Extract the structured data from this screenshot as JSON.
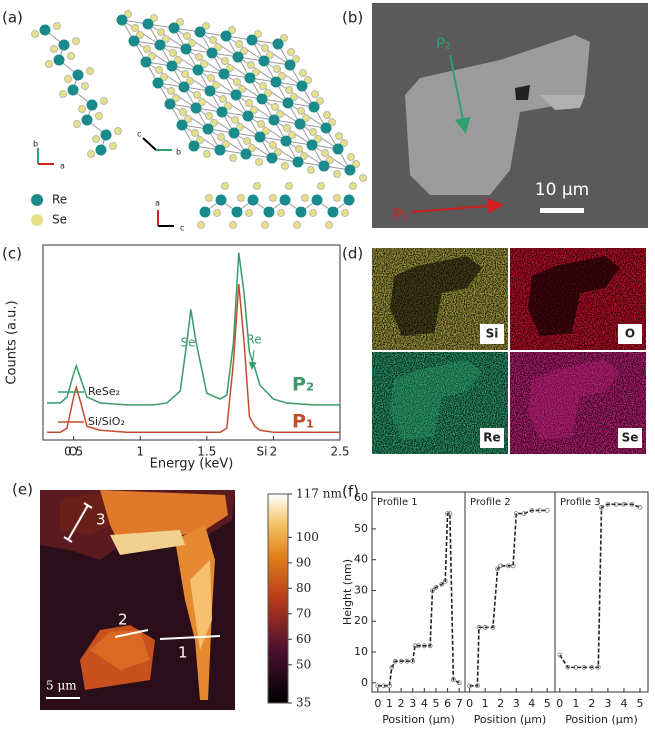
{
  "panels": {
    "a": "(a)",
    "b": "(b)",
    "c": "(c)",
    "d": "(d)",
    "e": "(e)",
    "f": "(f)"
  },
  "crystal": {
    "legend": [
      "Re",
      "Se"
    ],
    "axes": [
      [
        "b",
        "a"
      ],
      [
        "c",
        "b"
      ],
      [
        "a",
        "c"
      ]
    ]
  },
  "sem": {
    "probe_2": "P₂",
    "probe_1": "P₁",
    "scale_bar": "10 μm"
  },
  "eds_maps": [
    "Si",
    "O",
    "Re",
    "Se"
  ],
  "afm": {
    "profile_labels": [
      "1",
      "2",
      "3"
    ],
    "scale_bar": "5 μm",
    "colorbar": {
      "lim": [
        35,
        117
      ],
      "ticks": [
        35,
        50,
        60,
        70,
        80,
        90,
        100,
        {
          "value": 117,
          "label": "117 nm"
        }
      ]
    }
  },
  "chart_data": [
    {
      "type": "line",
      "x_label": "Energy (keV)",
      "y_label": "Counts (a.u.)",
      "x": [
        0.3,
        0.4,
        0.45,
        0.5,
        0.52,
        0.55,
        0.6,
        0.7,
        0.9,
        1.1,
        1.2,
        1.3,
        1.35,
        1.38,
        1.42,
        1.5,
        1.6,
        1.65,
        1.7,
        1.74,
        1.78,
        1.82,
        1.86,
        1.9,
        2.0,
        2.1,
        2.3,
        2.5
      ],
      "series": [
        {
          "name": "ReSe₂",
          "tag": "P₂",
          "color": "#3a9a6a",
          "values": [
            19,
            19,
            22,
            34,
            38,
            32,
            22,
            19,
            18,
            18,
            19,
            25,
            50,
            67,
            50,
            24,
            21,
            23,
            50,
            96,
            75,
            45,
            37,
            28,
            21,
            19,
            18,
            18
          ]
        },
        {
          "name": "Si/SiO₂",
          "tag": "P₁",
          "color": "#c0502c",
          "values": [
            4,
            4,
            6,
            22,
            27,
            20,
            7,
            5,
            4,
            4,
            4,
            4,
            4,
            4,
            4,
            4,
            4,
            6,
            40,
            80,
            50,
            12,
            7,
            5,
            4,
            4,
            4,
            4
          ]
        }
      ],
      "annotations": [
        "O",
        "Se",
        "Si",
        "Re"
      ],
      "xlim": [
        0.27,
        2.5
      ],
      "ylim": [
        0,
        100
      ],
      "xticks": [
        0.5,
        1,
        1.5,
        2,
        2.5
      ]
    },
    {
      "type": "line",
      "title": "Profile 1",
      "x_label": "Position (μm)",
      "y_label": "Height (nm)",
      "dashed": true,
      "markers": true,
      "x": [
        0,
        0.5,
        1,
        1.2,
        1.5,
        2,
        2.5,
        3,
        3.2,
        3.5,
        4,
        4.5,
        4.7,
        5,
        5.5,
        5.8,
        6,
        6.2,
        6.5,
        7
      ],
      "series": [
        {
          "color": "#222222",
          "values": [
            -1,
            -1,
            -1,
            5,
            7,
            7,
            7,
            7,
            12,
            12,
            12,
            12,
            30,
            31,
            32,
            33,
            55,
            55,
            1,
            0
          ]
        }
      ],
      "xlim": [
        -0.5,
        7.5
      ],
      "ylim": [
        -3,
        62
      ],
      "xticks": [
        0,
        1,
        2,
        3,
        4,
        5,
        6,
        7
      ],
      "yticks": [
        0,
        10,
        20,
        30,
        40,
        50,
        60
      ]
    },
    {
      "type": "line",
      "title": "Profile 2",
      "x_label": "Position (μm)",
      "dashed": true,
      "markers": true,
      "x": [
        0,
        0.5,
        0.6,
        1,
        1.5,
        1.8,
        2,
        2.5,
        2.8,
        3,
        3.5,
        4,
        4.5,
        5
      ],
      "series": [
        {
          "color": "#222222",
          "values": [
            -1,
            -1,
            18,
            18,
            18,
            37,
            38,
            38,
            38,
            55,
            55,
            56,
            56,
            56
          ]
        }
      ],
      "xlim": [
        -0.3,
        5.5
      ],
      "ylim": [
        -3,
        62
      ],
      "xticks": [
        0,
        1,
        2,
        3,
        4,
        5
      ]
    },
    {
      "type": "line",
      "title": "Profile 3",
      "x_label": "Position (μm)",
      "dashed": true,
      "markers": true,
      "x": [
        0,
        0.5,
        1,
        1.5,
        2,
        2.4,
        2.6,
        3,
        3.5,
        4,
        4.5,
        5
      ],
      "series": [
        {
          "color": "#222222",
          "values": [
            9,
            5,
            5,
            5,
            5,
            5,
            57,
            58,
            58,
            58,
            58,
            57
          ]
        }
      ],
      "xlim": [
        -0.3,
        5.5
      ],
      "ylim": [
        -3,
        62
      ],
      "xticks": [
        0,
        1,
        2,
        3,
        4,
        5
      ]
    }
  ]
}
